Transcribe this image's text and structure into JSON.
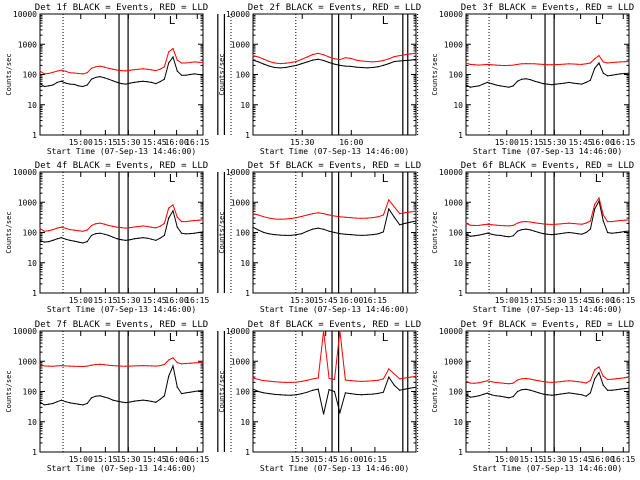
{
  "chart_data": [
    {
      "type": "line",
      "title": "Det 1f BLACK = Events, RED = LLD",
      "xticks": [
        "15:00",
        "15:15",
        "15:30",
        "15:45",
        "16:00",
        "16:15"
      ],
      "ylabel": "Counts/sec",
      "xlabel": "Start Time (07-Sep-13 14:46:00)",
      "yticks": [
        "1",
        "10",
        "100",
        "1000",
        "10000"
      ],
      "ylim": [
        1,
        10000
      ],
      "xlim_min": [
        0,
        99
      ],
      "lines_solid_min": [
        48,
        53.5,
        108,
        112
      ],
      "lines_dotted_min": [
        14,
        116
      ],
      "corner_mark": "L",
      "series": [
        {
          "name": "Events",
          "color": "#000000",
          "values": [
            50,
            40,
            42,
            45,
            55,
            60,
            52,
            48,
            47,
            42,
            40,
            45,
            70,
            80,
            85,
            78,
            70,
            62,
            55,
            50,
            48,
            52,
            55,
            58,
            60,
            58,
            55,
            50,
            58,
            70,
            240,
            380,
            130,
            95,
            95,
            100,
            105,
            100,
            98
          ]
        },
        {
          "name": "LLD",
          "color": "#ff0000",
          "values": [
            130,
            105,
            108,
            118,
            130,
            140,
            128,
            115,
            112,
            108,
            105,
            115,
            160,
            180,
            190,
            175,
            160,
            150,
            140,
            135,
            132,
            138,
            145,
            150,
            155,
            150,
            142,
            135,
            150,
            180,
            560,
            720,
            300,
            240,
            240,
            250,
            260,
            255,
            250
          ]
        }
      ]
    },
    {
      "type": "line",
      "title": "Det 2f BLACK = Events, RED = LLD",
      "xticks": [
        "15:30",
        "16:00"
      ],
      "ylabel": "Counts/sec",
      "xlabel": "Start Time (07-Sep-13 14:46:00)",
      "yticks": [
        "1",
        "10",
        "100",
        "1000",
        "10000"
      ],
      "ylim": [
        1,
        10000
      ],
      "xlim_min": [
        0,
        99
      ],
      "lines_solid_min": [
        48,
        52,
        91,
        94
      ],
      "lines_dotted_min": [
        26,
        100
      ],
      "corner_mark": "L",
      "series": [
        {
          "name": "Events",
          "color": "#000000",
          "values": [
            300,
            260,
            220,
            190,
            170,
            165,
            170,
            185,
            200,
            230,
            260,
            300,
            320,
            290,
            250,
            220,
            200,
            190,
            185,
            175,
            170,
            165,
            170,
            180,
            200,
            230,
            270,
            280,
            290,
            300,
            320
          ]
        },
        {
          "name": "LLD",
          "color": "#ff0000",
          "values": [
            420,
            380,
            320,
            270,
            240,
            230,
            235,
            250,
            270,
            320,
            380,
            460,
            500,
            450,
            380,
            330,
            310,
            360,
            340,
            300,
            280,
            270,
            260,
            270,
            290,
            330,
            390,
            420,
            450,
            480,
            500
          ]
        }
      ]
    },
    {
      "type": "line",
      "title": "Det 3f BLACK = Events, RED = LLD",
      "xticks": [
        "15:00",
        "15:15",
        "15:30",
        "15:45",
        "16:00",
        "16:15"
      ],
      "ylabel": "Counts/sec",
      "xlabel": "Start Time (07-Sep-13 14:46:00)",
      "yticks": [
        "1",
        "10",
        "100",
        "1000",
        "10000"
      ],
      "ylim": [
        1,
        10000
      ],
      "xlim_min": [
        0,
        99
      ],
      "lines_solid_min": [
        48,
        53.5,
        108,
        112
      ],
      "lines_dotted_min": [
        14,
        116
      ],
      "corner_mark": "L",
      "series": [
        {
          "name": "Events",
          "color": "#000000",
          "values": [
            45,
            38,
            40,
            42,
            48,
            55,
            50,
            45,
            42,
            40,
            38,
            42,
            60,
            70,
            72,
            68,
            60,
            55,
            50,
            48,
            46,
            48,
            50,
            52,
            55,
            52,
            50,
            48,
            55,
            65,
            160,
            240,
            110,
            90,
            95,
            100,
            105,
            108,
            110
          ]
        },
        {
          "name": "LLD",
          "color": "#ff0000",
          "values": [
            240,
            215,
            210,
            205,
            210,
            215,
            210,
            205,
            200,
            198,
            200,
            205,
            215,
            225,
            230,
            228,
            225,
            220,
            215,
            210,
            210,
            212,
            215,
            220,
            225,
            222,
            218,
            215,
            225,
            240,
            330,
            420,
            260,
            240,
            250,
            255,
            260,
            265,
            270
          ]
        }
      ]
    },
    {
      "type": "line",
      "title": "Det 4f BLACK = Events, RED = LLD",
      "xticks": [
        "15:00",
        "15:15",
        "15:30",
        "15:45",
        "16:00",
        "16:15"
      ],
      "ylabel": "Counts/sec",
      "xlabel": "Start Time (07-Sep-13 14:46:00)",
      "yticks": [
        "1",
        "10",
        "100",
        "1000",
        "10000"
      ],
      "ylim": [
        1,
        10000
      ],
      "xlim_min": [
        0,
        99
      ],
      "lines_solid_min": [
        48,
        53.5,
        108,
        112
      ],
      "lines_dotted_min": [
        14,
        116
      ],
      "corner_mark": "L",
      "series": [
        {
          "name": "Events",
          "color": "#000000",
          "values": [
            55,
            48,
            50,
            55,
            62,
            68,
            60,
            55,
            52,
            48,
            45,
            50,
            80,
            92,
            95,
            88,
            80,
            70,
            62,
            58,
            55,
            58,
            62,
            65,
            68,
            65,
            60,
            55,
            65,
            80,
            300,
            520,
            150,
            95,
            90,
            92,
            95,
            100,
            105
          ]
        },
        {
          "name": "LLD",
          "color": "#ff0000",
          "values": [
            135,
            110,
            115,
            125,
            140,
            150,
            138,
            125,
            120,
            115,
            110,
            120,
            170,
            195,
            205,
            190,
            170,
            160,
            150,
            145,
            140,
            145,
            152,
            158,
            165,
            158,
            150,
            142,
            160,
            200,
            640,
            820,
            320,
            230,
            230,
            240,
            250,
            255,
            260
          ]
        }
      ]
    },
    {
      "type": "line",
      "title": "Det 5f BLACK = Events, RED = LLD",
      "xticks": [
        "15:30",
        "15:45",
        "16:00",
        "16:15"
      ],
      "ylabel": "Counts/sec",
      "xlabel": "Start Time (07-Sep-13 14:46:00)",
      "yticks": [
        "1",
        "10",
        "100",
        "1000",
        "10000"
      ],
      "ylim": [
        1,
        10000
      ],
      "xlim_min": [
        0,
        99
      ],
      "lines_solid_min": [
        48,
        52,
        91,
        94
      ],
      "lines_dotted_min": [
        26,
        100
      ],
      "corner_mark": "L",
      "series": [
        {
          "name": "Events",
          "color": "#000000",
          "values": [
            150,
            120,
            100,
            90,
            85,
            82,
            80,
            80,
            85,
            92,
            110,
            130,
            140,
            128,
            110,
            100,
            92,
            88,
            85,
            82,
            80,
            82,
            85,
            90,
            105,
            600,
            320,
            180,
            200,
            220,
            240
          ]
        },
        {
          "name": "LLD",
          "color": "#ff0000",
          "values": [
            420,
            380,
            330,
            300,
            280,
            275,
            280,
            290,
            310,
            340,
            380,
            420,
            450,
            420,
            380,
            350,
            330,
            320,
            310,
            300,
            295,
            300,
            310,
            330,
            380,
            1200,
            700,
            420,
            450,
            480,
            500
          ]
        }
      ]
    },
    {
      "type": "line",
      "title": "Det 6f BLACK = Events, RED = LLD",
      "xticks": [
        "15:00",
        "15:15",
        "15:30",
        "15:45",
        "16:00",
        "16:15"
      ],
      "ylabel": "Counts/sec",
      "xlabel": "Start Time (07-Sep-13 14:46:00)",
      "yticks": [
        "1",
        "10",
        "100",
        "1000",
        "10000"
      ],
      "ylim": [
        1,
        10000
      ],
      "xlim_min": [
        0,
        99
      ],
      "lines_solid_min": [
        48,
        53.5,
        108,
        112
      ],
      "lines_dotted_min": [
        14,
        116
      ],
      "corner_mark": "L",
      "series": [
        {
          "name": "Events",
          "color": "#000000",
          "values": [
            90,
            75,
            78,
            82,
            88,
            95,
            88,
            82,
            80,
            75,
            72,
            78,
            110,
            125,
            130,
            122,
            110,
            100,
            92,
            88,
            85,
            88,
            92,
            96,
            100,
            96,
            92,
            88,
            100,
            130,
            600,
            1100,
            240,
            100,
            95,
            98,
            102,
            108,
            112
          ]
        },
        {
          "name": "LLD",
          "color": "#ff0000",
          "values": [
            200,
            175,
            170,
            172,
            180,
            188,
            180,
            175,
            170,
            168,
            165,
            172,
            205,
            225,
            230,
            222,
            210,
            200,
            192,
            188,
            185,
            188,
            192,
            198,
            205,
            198,
            192,
            188,
            205,
            240,
            850,
            1400,
            380,
            230,
            230,
            240,
            250,
            255,
            260
          ]
        }
      ]
    },
    {
      "type": "line",
      "title": "Det 7f BLACK = Events, RED = LLD",
      "xticks": [
        "15:00",
        "15:15",
        "15:30",
        "15:45",
        "16:00",
        "16:15"
      ],
      "ylabel": "Counts/sec",
      "xlabel": "Start Time (07-Sep-13 14:46:00)",
      "yticks": [
        "1",
        "10",
        "100",
        "1000",
        "10000"
      ],
      "ylim": [
        1,
        10000
      ],
      "xlim_min": [
        0,
        99
      ],
      "lines_solid_min": [
        48,
        53.5,
        108,
        112
      ],
      "lines_dotted_min": [
        14,
        116
      ],
      "corner_mark": "L",
      "series": [
        {
          "name": "Events",
          "color": "#000000",
          "values": [
            45,
            36,
            38,
            40,
            46,
            52,
            46,
            42,
            40,
            38,
            36,
            40,
            62,
            70,
            72,
            66,
            60,
            52,
            48,
            45,
            43,
            45,
            48,
            50,
            52,
            50,
            47,
            44,
            55,
            72,
            320,
            700,
            140,
            85,
            90,
            95,
            100,
            105,
            110
          ]
        },
        {
          "name": "LLD",
          "color": "#ff0000",
          "values": [
            760,
            700,
            690,
            680,
            700,
            720,
            700,
            690,
            680,
            675,
            670,
            690,
            740,
            780,
            790,
            770,
            740,
            720,
            700,
            690,
            685,
            690,
            700,
            710,
            720,
            712,
            700,
            690,
            720,
            780,
            1100,
            1300,
            900,
            820,
            840,
            860,
            880,
            900,
            920
          ]
        }
      ]
    },
    {
      "type": "line",
      "title": "Det 8f BLACK = Events, RED = LLD",
      "xticks": [
        "15:30",
        "15:45",
        "16:00",
        "16:15"
      ],
      "ylabel": "Counts/sec",
      "xlabel": "Start Time (07-Sep-13 14:46:00)",
      "yticks": [
        "1",
        "10",
        "100",
        "1000",
        "10000"
      ],
      "ylim": [
        1,
        10000
      ],
      "xlim_min": [
        0,
        99
      ],
      "lines_solid_min": [
        48,
        52,
        91,
        94
      ],
      "lines_dotted_min": [
        26,
        100
      ],
      "corner_mark": "L",
      "series": [
        {
          "name": "Events",
          "color": "#000000",
          "values": [
            120,
            100,
            90,
            85,
            80,
            78,
            76,
            75,
            78,
            85,
            95,
            110,
            120,
            18,
            115,
            100,
            20,
            90,
            85,
            80,
            78,
            80,
            82,
            86,
            95,
            300,
            160,
            110,
            120,
            130,
            140
          ]
        },
        {
          "name": "LLD",
          "color": "#ff0000",
          "values": [
            280,
            250,
            230,
            220,
            210,
            205,
            200,
            200,
            205,
            215,
            235,
            260,
            280,
            10000,
            270,
            250,
            10000,
            240,
            230,
            220,
            215,
            220,
            225,
            235,
            260,
            560,
            380,
            260,
            280,
            300,
            320
          ]
        }
      ]
    },
    {
      "type": "line",
      "title": "Det 9f BLACK = Events, RED = LLD",
      "xticks": [
        "15:00",
        "15:15",
        "15:30",
        "15:45",
        "16:00",
        "16:15"
      ],
      "ylabel": "Counts/sec",
      "xlabel": "Start Time (07-Sep-13 14:46:00)",
      "yticks": [
        "1",
        "10",
        "100",
        "1000",
        "10000"
      ],
      "ylim": [
        1,
        10000
      ],
      "xlim_min": [
        0,
        99
      ],
      "lines_solid_min": [
        48,
        53.5,
        108,
        112
      ],
      "lines_dotted_min": [
        14,
        116
      ],
      "corner_mark": "L",
      "series": [
        {
          "name": "Events",
          "color": "#000000",
          "values": [
            80,
            65,
            68,
            72,
            80,
            88,
            78,
            72,
            70,
            66,
            62,
            68,
            100,
            115,
            118,
            110,
            100,
            90,
            82,
            78,
            75,
            78,
            82,
            86,
            90,
            86,
            82,
            78,
            70,
            90,
            260,
            420,
            160,
            110,
            110,
            115,
            120,
            125,
            130
          ]
        },
        {
          "name": "LLD",
          "color": "#ff0000",
          "values": [
            220,
            190,
            188,
            195,
            210,
            225,
            210,
            198,
            192,
            185,
            180,
            190,
            240,
            265,
            270,
            258,
            240,
            225,
            212,
            205,
            200,
            205,
            212,
            220,
            228,
            220,
            212,
            205,
            190,
            230,
            520,
            650,
            320,
            250,
            255,
            265,
            275,
            285,
            295
          ]
        }
      ]
    }
  ]
}
